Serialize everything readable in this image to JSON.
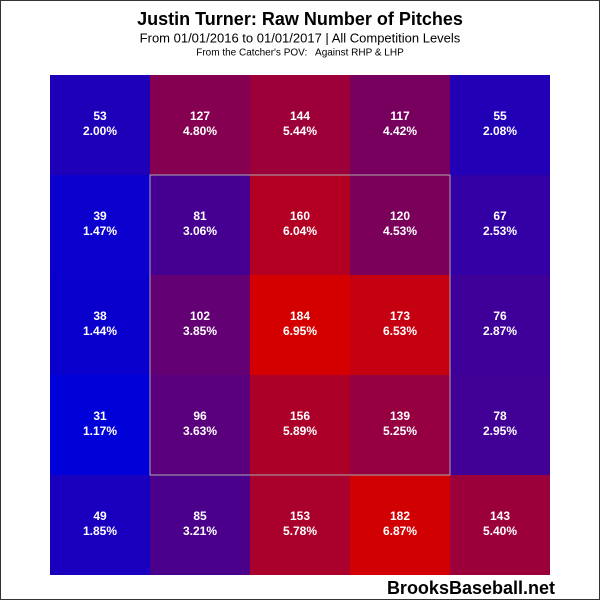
{
  "chart_data": {
    "type": "heatmap",
    "title": "Justin Turner: Raw Number of Pitches",
    "subtitle": "From 01/01/2016 to 01/01/2017 | All Competition Levels",
    "note": "From the Catcher's POV:   Against RHP & LHP",
    "watermark": "BrooksBaseball.net",
    "colorscale": [
      "#0000d8",
      "#d40000"
    ],
    "values": [
      [
        53,
        127,
        144,
        117,
        55
      ],
      [
        39,
        81,
        160,
        120,
        67
      ],
      [
        38,
        102,
        184,
        173,
        76
      ],
      [
        31,
        96,
        156,
        139,
        78
      ],
      [
        49,
        85,
        153,
        182,
        143
      ]
    ],
    "percents": [
      [
        2.0,
        4.8,
        5.44,
        4.42,
        2.08
      ],
      [
        1.47,
        3.06,
        6.04,
        4.53,
        2.53
      ],
      [
        1.44,
        3.85,
        6.95,
        6.53,
        2.87
      ],
      [
        1.17,
        3.63,
        5.89,
        5.25,
        2.95
      ],
      [
        1.85,
        3.21,
        5.78,
        6.87,
        5.4
      ]
    ],
    "percent_labels": [
      [
        "2.00%",
        "4.80%",
        "5.44%",
        "4.42%",
        "2.08%"
      ],
      [
        "1.47%",
        "3.06%",
        "6.04%",
        "4.53%",
        "2.53%"
      ],
      [
        "1.44%",
        "3.85%",
        "6.95%",
        "6.53%",
        "2.87%"
      ],
      [
        "1.17%",
        "3.63%",
        "5.89%",
        "5.25%",
        "2.95%"
      ],
      [
        "1.85%",
        "3.21%",
        "5.78%",
        "6.87%",
        "5.40%"
      ]
    ]
  }
}
